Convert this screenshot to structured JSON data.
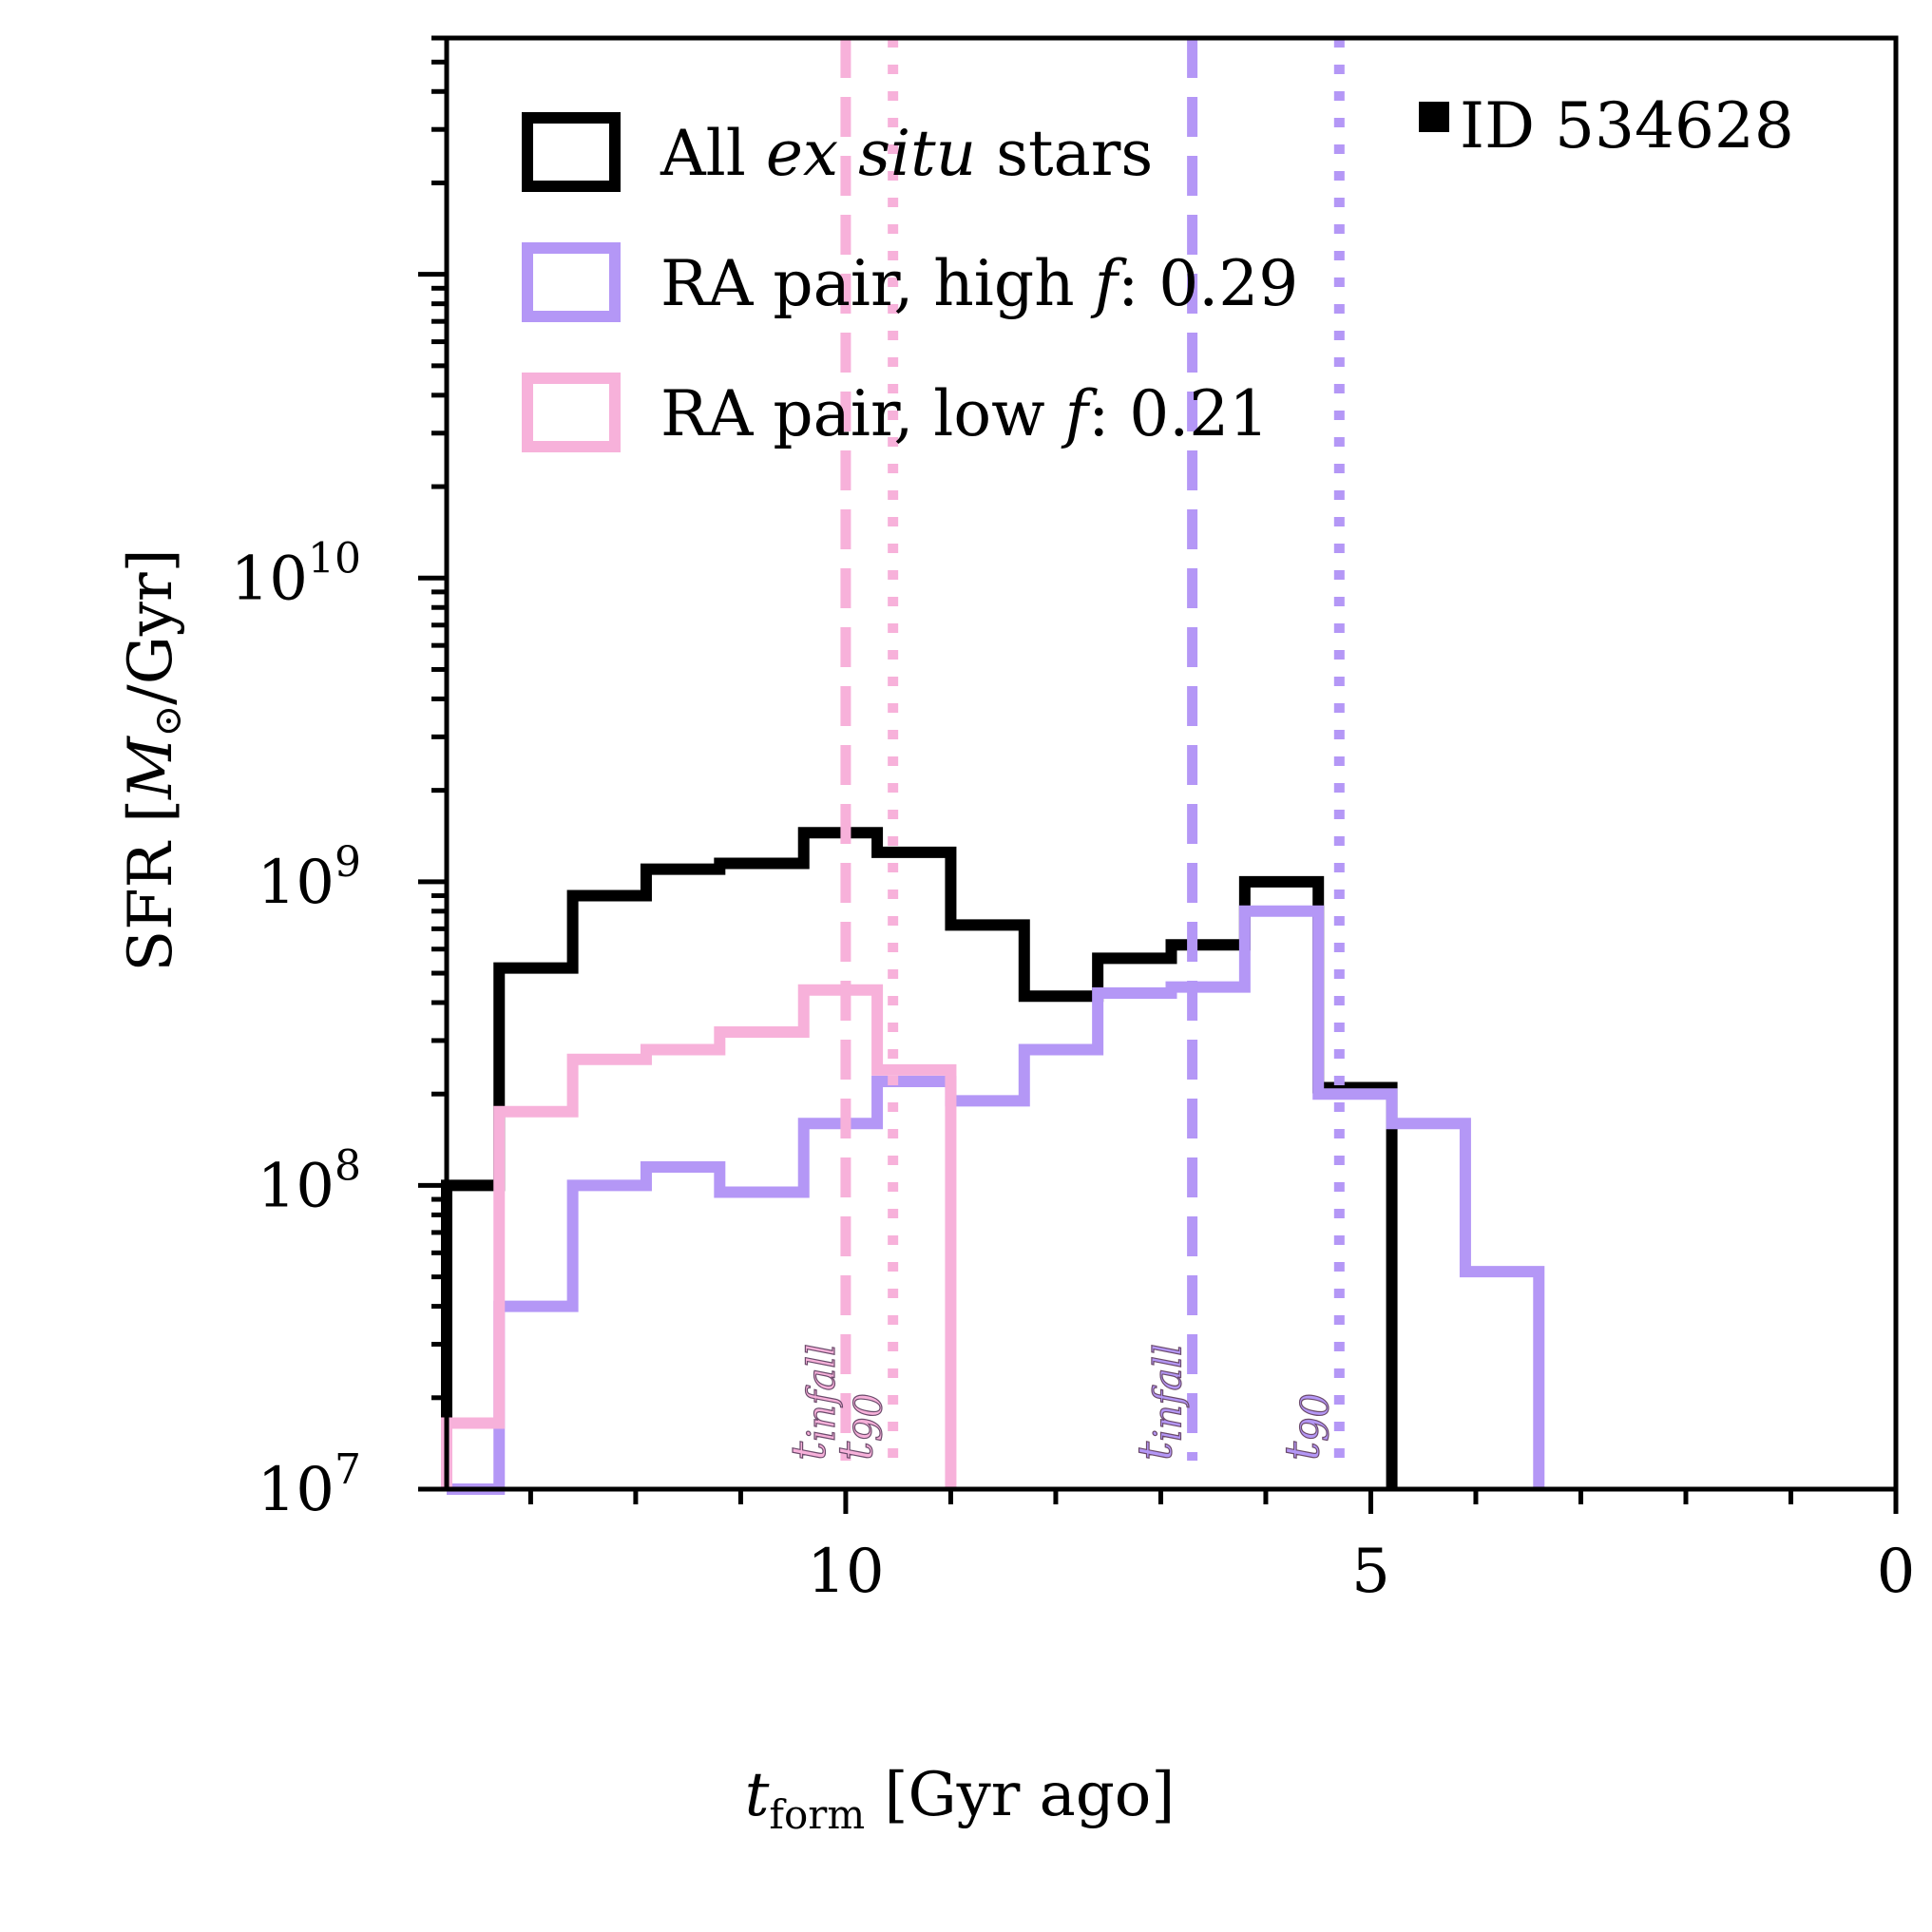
{
  "chart_data": {
    "type": "step-histogram",
    "id_label": "ID 534628",
    "xlabel": {
      "main": "t",
      "sub": "form",
      "rest": " [Gyr ago]"
    },
    "ylabel": {
      "prefix": "SFR [",
      "italic": "M",
      "symbol": "⊙",
      "suffix": "/Gyr]"
    },
    "xlim": [
      13.8,
      0
    ],
    "ylim": [
      10000000,
      600000000000
    ],
    "y_scale": "log",
    "x_ticks": [
      {
        "value": 10,
        "label": "10"
      },
      {
        "value": 5,
        "label": "5"
      },
      {
        "value": 0,
        "label": "0"
      }
    ],
    "y_ticks": [
      {
        "value": 10000000,
        "base": "10",
        "exp": "7"
      },
      {
        "value": 100000000,
        "base": "10",
        "exp": "8"
      },
      {
        "value": 1000000000,
        "base": "10",
        "exp": "9"
      },
      {
        "value": 10000000000,
        "base": "10",
        "exp": "10"
      }
    ],
    "bin_edges": [
      13.8,
      13.3,
      12.6,
      11.9,
      11.2,
      10.4,
      9.7,
      9.0,
      8.3,
      7.6,
      6.9,
      6.2,
      5.5,
      4.8,
      4.1,
      3.4
    ],
    "series": [
      {
        "key": "all",
        "name": "All ex situ stars",
        "color": "#000000",
        "values": [
          100000000,
          520000000,
          900000000,
          1100000000,
          1150000000,
          1450000000,
          1250000000,
          720000000,
          420000000,
          560000000,
          620000000,
          1000000000,
          210000000,
          null,
          null
        ]
      },
      {
        "key": "high",
        "name": "RA pair, high f: 0.29",
        "color": "#b497f6",
        "values": [
          9000000,
          40000000,
          100000000,
          115000000,
          95000000,
          160000000,
          220000000,
          190000000,
          280000000,
          430000000,
          450000000,
          800000000,
          200000000,
          160000000,
          52000000
        ]
      },
      {
        "key": "low",
        "name": "RA pair, low f: 0.21",
        "color": "#f7b1da",
        "values": [
          16500000,
          175000000,
          260000000,
          280000000,
          320000000,
          440000000,
          240000000,
          null,
          null,
          null,
          null,
          null,
          null,
          null,
          null
        ]
      }
    ],
    "legend": [
      {
        "text_pre": "All ",
        "text_italic": "ex situ",
        "text_post": " stars",
        "color": "#000000"
      },
      {
        "text_pre": "RA pair, high ",
        "text_italic": "f",
        "text_post": ": 0.29",
        "color": "#b497f6"
      },
      {
        "text_pre": "RA pair, low ",
        "text_italic": "f",
        "text_post": ": 0.21",
        "color": "#f7b1da"
      }
    ],
    "vertical_lines": [
      {
        "x": 10.0,
        "style": "dashed",
        "color": "#f7b1da",
        "label_main": "t",
        "label_sub": "infall"
      },
      {
        "x": 9.55,
        "style": "dotted",
        "color": "#f7b1da",
        "label_main": "t",
        "label_sub": "90"
      },
      {
        "x": 6.7,
        "style": "dashed",
        "color": "#b497f6",
        "label_main": "t",
        "label_sub": "infall"
      },
      {
        "x": 5.3,
        "style": "dotted",
        "color": "#b497f6",
        "label_main": "t",
        "label_sub": "90"
      }
    ]
  }
}
